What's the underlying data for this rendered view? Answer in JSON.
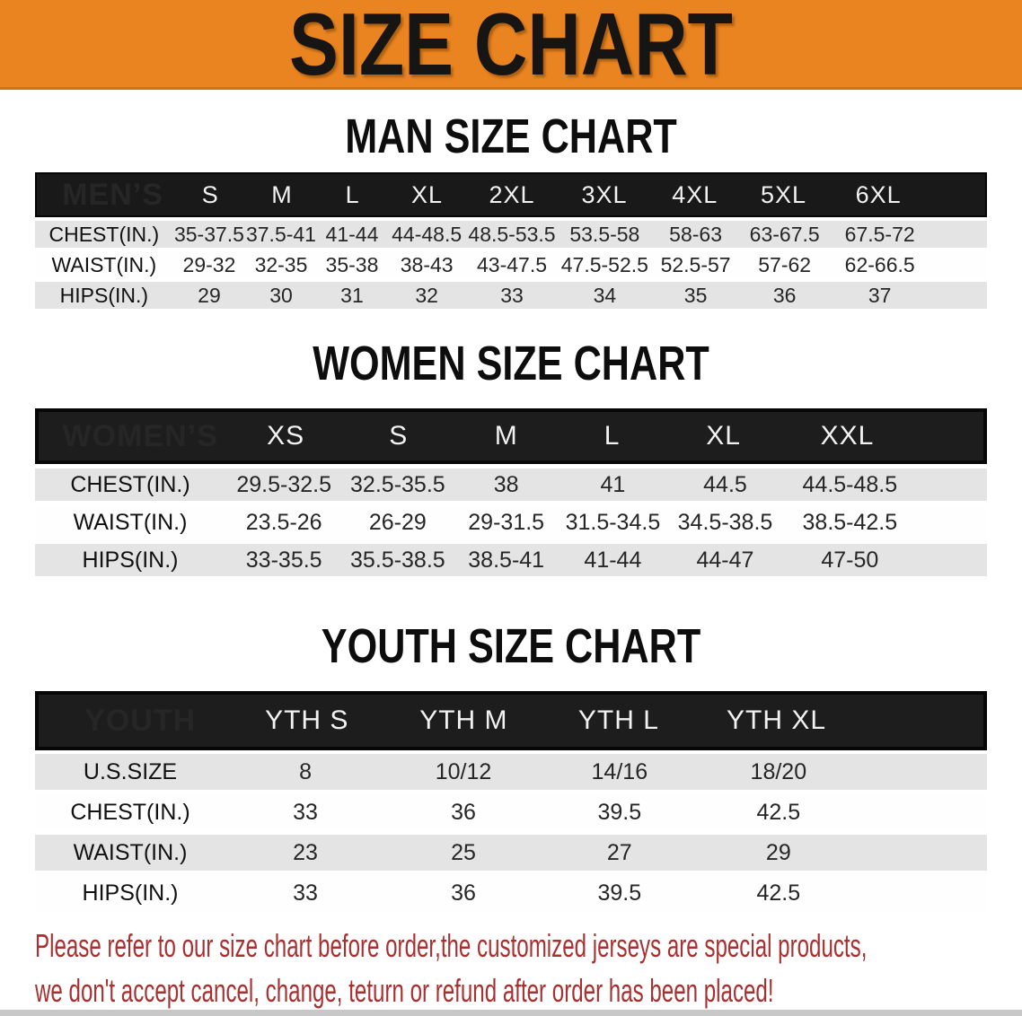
{
  "banner": {
    "title": "SIZE CHART",
    "background_color": "#E98420",
    "text_color": "#171513"
  },
  "sections": {
    "men": {
      "heading": "MAN SIZE CHART",
      "table": {
        "group_label": "MEN’S",
        "columns": [
          "S",
          "M",
          "L",
          "XL",
          "2XL",
          "3XL",
          "4XL",
          "5XL",
          "6XL"
        ],
        "rows": [
          {
            "label": "CHEST(IN.)",
            "values": [
              "35-37.5",
              "37.5-41",
              "41-44",
              "44-48.5",
              "48.5-53.5",
              "53.5-58",
              "58-63",
              "63-67.5",
              "67.5-72"
            ]
          },
          {
            "label": "WAIST(IN.)",
            "values": [
              "29-32",
              "32-35",
              "35-38",
              "38-43",
              "43-47.5",
              "47.5-52.5",
              "52.5-57",
              "57-62",
              "62-66.5"
            ]
          },
          {
            "label": "HIPS(IN.)",
            "values": [
              "29",
              "30",
              "31",
              "32",
              "33",
              "34",
              "35",
              "36",
              "37"
            ]
          }
        ]
      }
    },
    "women": {
      "heading": "WOMEN SIZE CHART",
      "table": {
        "group_label": "WOMEN’S",
        "columns": [
          "XS",
          "S",
          "M",
          "L",
          "XL",
          "XXL"
        ],
        "rows": [
          {
            "label": "CHEST(IN.)",
            "values": [
              "29.5-32.5",
              "32.5-35.5",
              "38",
              "41",
              "44.5",
              "44.5-48.5"
            ]
          },
          {
            "label": "WAIST(IN.)",
            "values": [
              "23.5-26",
              "26-29",
              "29-31.5",
              "31.5-34.5",
              "34.5-38.5",
              "38.5-42.5"
            ]
          },
          {
            "label": "HIPS(IN.)",
            "values": [
              "33-35.5",
              "35.5-38.5",
              "38.5-41",
              "41-44",
              "44-47",
              "47-50"
            ]
          }
        ]
      }
    },
    "youth": {
      "heading": "YOUTH SIZE CHART",
      "table": {
        "group_label": "YOUTH",
        "columns": [
          "YTH S",
          "YTH M",
          "YTH L",
          "YTH XL"
        ],
        "rows": [
          {
            "label": "U.S.SIZE",
            "values": [
              "8",
              "10/12",
              "14/16",
              "18/20"
            ]
          },
          {
            "label": "CHEST(IN.)",
            "values": [
              "33",
              "36",
              "39.5",
              "42.5"
            ]
          },
          {
            "label": "WAIST(IN.)",
            "values": [
              "23",
              "25",
              "27",
              "29"
            ]
          },
          {
            "label": "HIPS(IN.)",
            "values": [
              "33",
              "36",
              "39.5",
              "42.5"
            ]
          }
        ]
      }
    }
  },
  "disclaimer": {
    "line1": "Please refer to our size chart before order,the customized jerseys are special products,",
    "line2": "we don't accept cancel, change, teturn or refund after order has been placed!",
    "color": "#A93030"
  },
  "table_colors": {
    "header_bar": "#191919",
    "shaded_row": "#E4E4E4",
    "plain_row": "#FEFEFE"
  }
}
